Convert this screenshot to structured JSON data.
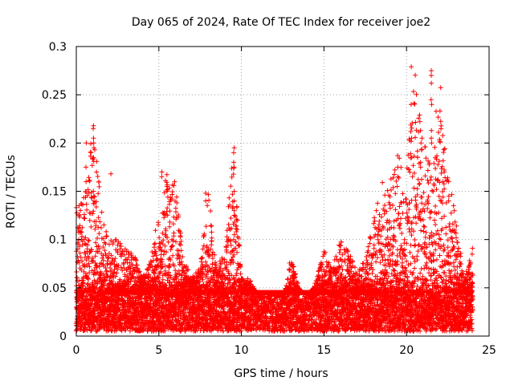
{
  "chart_data": {
    "type": "scatter",
    "title": "Day 065 of 2024, Rate Of TEC Index for receiver joe2",
    "xlabel": "GPS time / hours",
    "ylabel": "ROTI / TECUs",
    "xlim": [
      0,
      25
    ],
    "ylim": [
      0,
      0.3
    ],
    "xticks": [
      0,
      5,
      10,
      15,
      20,
      25
    ],
    "xtick_labels": [
      "0",
      "5",
      "10",
      "15",
      "20",
      "25"
    ],
    "yticks": [
      0,
      0.05,
      0.1,
      0.15,
      0.2,
      0.25,
      0.3
    ],
    "ytick_labels": [
      "0",
      "0.05",
      "0.1",
      "0.15",
      "0.2",
      "0.25",
      "0.3"
    ],
    "grid": true,
    "marker": "plus",
    "color": "#ff0000",
    "series": [
      {
        "name": "ROTI",
        "x_range": [
          0,
          24
        ],
        "baseline_band": [
          0.005,
          0.045
        ],
        "envelope": [
          [
            0.0,
            0.14
          ],
          [
            0.5,
            0.15
          ],
          [
            1.0,
            0.22
          ],
          [
            1.5,
            0.14
          ],
          [
            2.0,
            0.1
          ],
          [
            2.5,
            0.1
          ],
          [
            3.0,
            0.09
          ],
          [
            3.5,
            0.085
          ],
          [
            4.0,
            0.06
          ],
          [
            4.5,
            0.08
          ],
          [
            5.0,
            0.13
          ],
          [
            5.5,
            0.17
          ],
          [
            6.0,
            0.16
          ],
          [
            6.5,
            0.08
          ],
          [
            7.0,
            0.06
          ],
          [
            7.5,
            0.075
          ],
          [
            8.0,
            0.15
          ],
          [
            8.5,
            0.07
          ],
          [
            9.0,
            0.09
          ],
          [
            9.5,
            0.195
          ],
          [
            10.0,
            0.06
          ],
          [
            10.5,
            0.06
          ],
          [
            11.0,
            0.04
          ],
          [
            11.5,
            0.025
          ],
          [
            12.0,
            0.03
          ],
          [
            12.5,
            0.03
          ],
          [
            13.0,
            0.085
          ],
          [
            13.5,
            0.05
          ],
          [
            14.0,
            0.035
          ],
          [
            14.5,
            0.06
          ],
          [
            15.0,
            0.09
          ],
          [
            15.5,
            0.07
          ],
          [
            16.0,
            0.1
          ],
          [
            16.5,
            0.09
          ],
          [
            17.0,
            0.065
          ],
          [
            17.5,
            0.08
          ],
          [
            18.0,
            0.12
          ],
          [
            18.5,
            0.16
          ],
          [
            19.0,
            0.16
          ],
          [
            19.5,
            0.19
          ],
          [
            20.0,
            0.17
          ],
          [
            20.5,
            0.28
          ],
          [
            21.0,
            0.2
          ],
          [
            21.5,
            0.19
          ],
          [
            22.0,
            0.27
          ],
          [
            22.5,
            0.17
          ],
          [
            23.0,
            0.12
          ],
          [
            23.5,
            0.06
          ],
          [
            24.0,
            0.09
          ]
        ],
        "spikes": [
          {
            "x": 0.15,
            "y": [
              0.135,
              0.125,
              0.1
            ]
          },
          {
            "x": 0.6,
            "y": [
              0.2,
              0.175,
              0.16
            ]
          },
          {
            "x": 1.05,
            "y": [
              0.218,
              0.215,
              0.205,
              0.2,
              0.195,
              0.185
            ]
          },
          {
            "x": 1.05,
            "y": [
              0.15,
              0.145,
              0.14
            ]
          },
          {
            "x": 2.1,
            "y": [
              0.168
            ]
          },
          {
            "x": 5.2,
            "y": [
              0.17,
              0.165
            ]
          },
          {
            "x": 5.5,
            "y": [
              0.155,
              0.15
            ]
          },
          {
            "x": 7.85,
            "y": [
              0.148,
              0.14
            ]
          },
          {
            "x": 9.55,
            "y": [
              0.195,
              0.19,
              0.18,
              0.175,
              0.15,
              0.14,
              0.13,
              0.125,
              0.105,
              0.1
            ]
          },
          {
            "x": 19.45,
            "y": [
              0.187,
              0.175,
              0.165,
              0.155
            ]
          },
          {
            "x": 20.3,
            "y": [
              0.279,
              0.24,
              0.205,
              0.185
            ]
          },
          {
            "x": 20.85,
            "y": [
              0.2,
              0.18,
              0.175
            ]
          },
          {
            "x": 21.5,
            "y": [
              0.275,
              0.27,
              0.262,
              0.245,
              0.24,
              0.213,
              0.205,
              0.2
            ]
          },
          {
            "x": 22.3,
            "y": [
              0.172,
              0.17
            ]
          },
          {
            "x": 22.55,
            "y": [
              0.16,
              0.145,
              0.14
            ]
          },
          {
            "x": 24.0,
            "y": [
              0.091
            ]
          }
        ]
      }
    ]
  }
}
